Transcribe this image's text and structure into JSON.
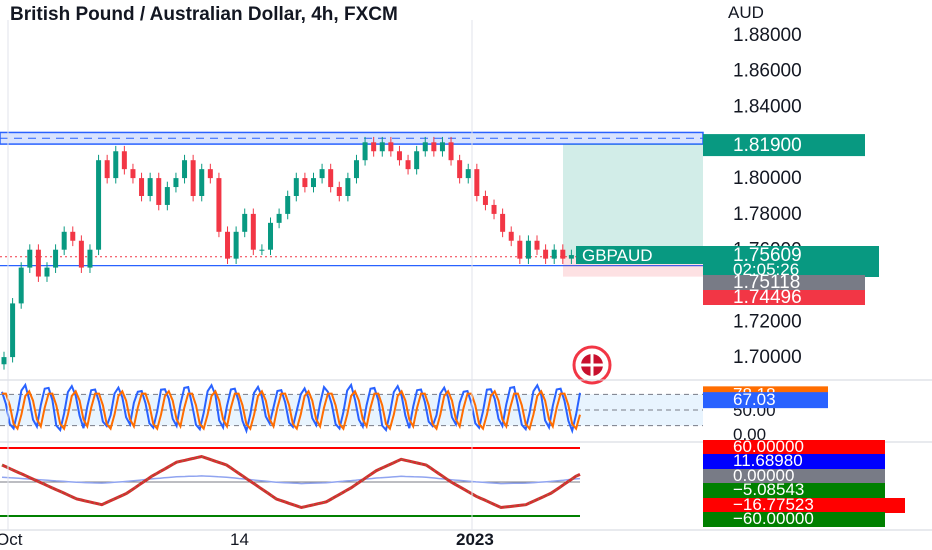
{
  "title": "British Pound / Australian Dollar, 4h, FXCM",
  "chart_data": {
    "type": "candlestick",
    "symbol": "GBPAUD",
    "currency_label": "AUD",
    "ylim": [
      1.69,
      1.89
    ],
    "y_ticks": [
      "1.88000",
      "1.86000",
      "1.84000",
      "1.80000",
      "1.78000",
      "1.76000",
      "1.72000",
      "1.70000"
    ],
    "x_ticks": [
      "Oct",
      "14",
      "2023"
    ],
    "series": [
      {
        "name": "price",
        "values": [
          1.7,
          1.73,
          1.75,
          1.76,
          1.745,
          1.75,
          1.76,
          1.77,
          1.765,
          1.75,
          1.76,
          1.81,
          1.8,
          1.815,
          1.805,
          1.8,
          1.79,
          1.8,
          1.785,
          1.795,
          1.8,
          1.81,
          1.79,
          1.805,
          1.8,
          1.77,
          1.755,
          1.77,
          1.78,
          1.76,
          1.76,
          1.775,
          1.78,
          1.79,
          1.8,
          1.795,
          1.8,
          1.805,
          1.795,
          1.79,
          1.8,
          1.81,
          1.82,
          1.815,
          1.82,
          1.815,
          1.81,
          1.805,
          1.815,
          1.82,
          1.815,
          1.82,
          1.81,
          1.8,
          1.805,
          1.79,
          1.785,
          1.78,
          1.77,
          1.765,
          1.755,
          1.765,
          1.76,
          1.755,
          1.76,
          1.755,
          1.757,
          1.756
        ]
      }
    ],
    "levels": {
      "resistance_zone": [
        1.819,
        1.8255
      ],
      "support": 1.7511,
      "target": 1.819,
      "last": 1.75609,
      "stop": 1.74496
    },
    "price_labels": [
      {
        "text": "1.81900",
        "color": "#089981"
      },
      {
        "text": "GBPAUD",
        "color": "#089981"
      },
      {
        "text": "1.75609",
        "color": "#089981"
      },
      {
        "text": "02:05:26",
        "color": "#089981"
      },
      {
        "text": "1.75118",
        "color": "#787b86"
      },
      {
        "text": "1.74496",
        "color": "#f23645"
      }
    ],
    "stochastic": {
      "ylim": [
        0,
        100
      ],
      "ticks": [
        "50.00",
        "0.00"
      ],
      "k": 78.18,
      "d": 67.03,
      "k_label": "78.18",
      "d_label": "67.03",
      "k_color": "#2962ff",
      "d_color": "#ff6d00"
    },
    "oscillator": {
      "ylim": [
        -60,
        60
      ],
      "labels": [
        {
          "text": "60.00000",
          "color": "#ff0000"
        },
        {
          "text": "11.68980",
          "color": "#0000ff"
        },
        {
          "text": "0.00000",
          "color": "#787b86"
        },
        {
          "text": "−5.08543",
          "color": "#008000"
        },
        {
          "text": "−16.77523",
          "color": "#ff0000"
        },
        {
          "text": "−60.00000",
          "color": "#008000"
        }
      ],
      "upper_line": 60,
      "lower_line": -60
    },
    "colors": {
      "up": "#089981",
      "down": "#f23645",
      "zone": "#2962ff",
      "target_fill": "#089981",
      "stop_fill": "#f23645"
    },
    "grid": false
  }
}
